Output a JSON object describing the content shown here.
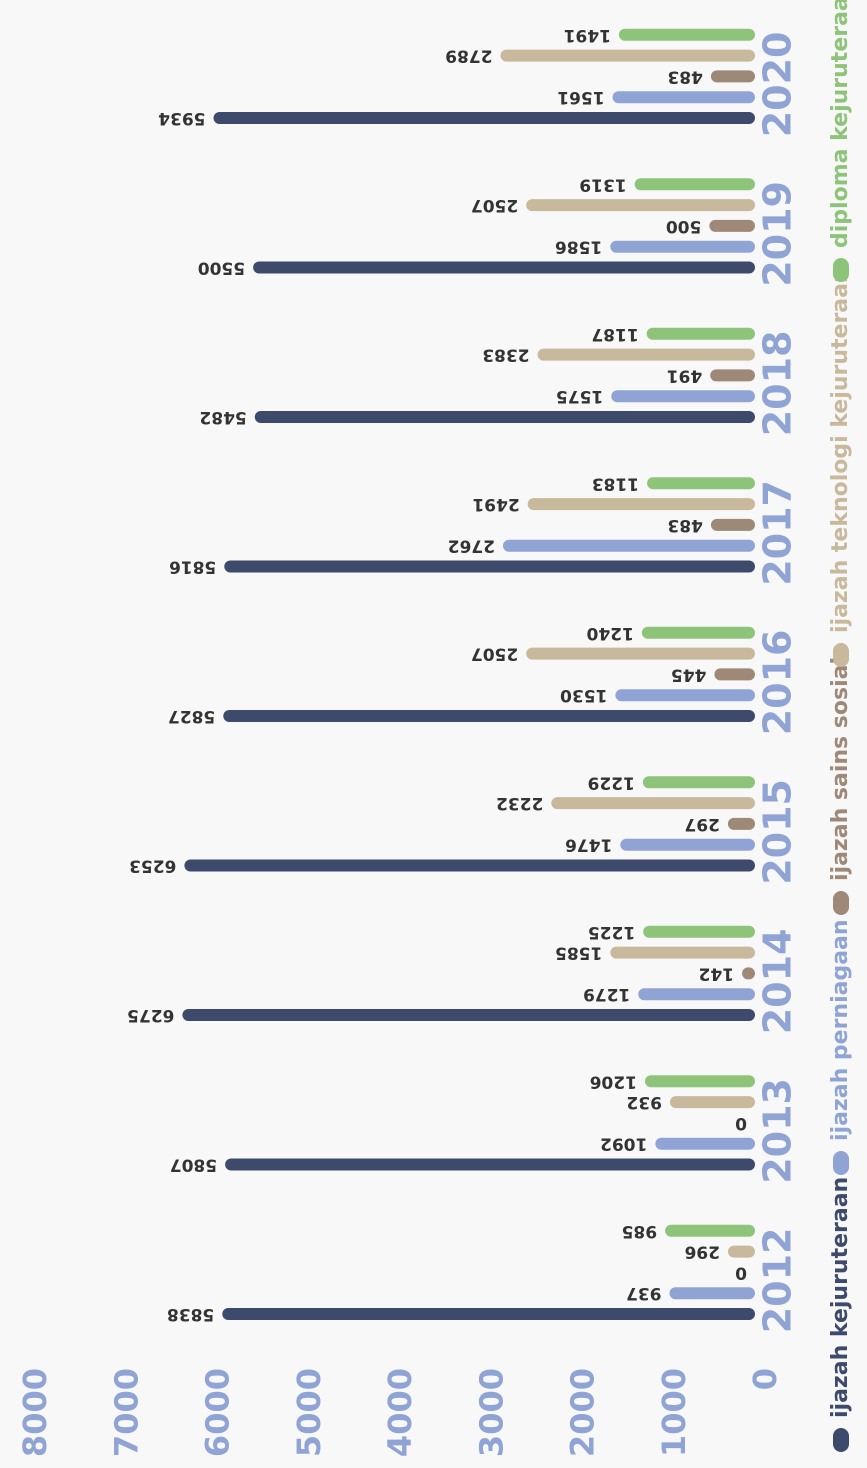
{
  "chart_data": {
    "type": "bar",
    "categories": [
      "2012",
      "2013",
      "2014",
      "2015",
      "2016",
      "2017",
      "2018",
      "2019",
      "2020"
    ],
    "series": [
      {
        "name": "ijazah kejuruteraan",
        "color": "#3d4a6b",
        "values": [
          5838,
          5807,
          6275,
          6253,
          5827,
          5816,
          5482,
          5500,
          5934
        ]
      },
      {
        "name": "ijazah perniagaan",
        "color": "#8fa4d4",
        "values": [
          937,
          1092,
          1279,
          1476,
          1530,
          2762,
          1575,
          1586,
          1561
        ]
      },
      {
        "name": "ijazah sains sosial",
        "color": "#9e8878",
        "values": [
          0,
          0,
          142,
          297,
          445,
          483,
          491,
          500,
          483
        ]
      },
      {
        "name": "ijazah teknologi kejuruteraan",
        "color": "#c8b89c",
        "values": [
          296,
          932,
          1585,
          2232,
          2507,
          2491,
          2383,
          2507,
          2789
        ]
      },
      {
        "name": "diploma kejuruteraan",
        "color": "#8dc47a",
        "values": [
          985,
          1206,
          1225,
          1229,
          1240,
          1183,
          1187,
          1319,
          1491
        ]
      }
    ],
    "ylim": [
      0,
      8000
    ],
    "yticks": [
      0,
      1000,
      2000,
      3000,
      4000,
      5000,
      6000,
      7000,
      8000
    ],
    "grid": false,
    "legend": "bottom"
  }
}
